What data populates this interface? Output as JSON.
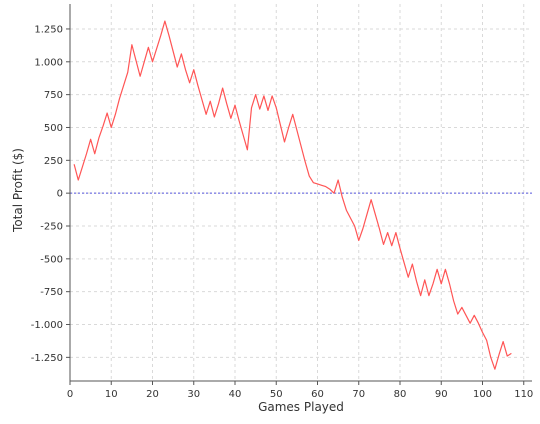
{
  "chart_data": {
    "type": "line",
    "title": "",
    "xlabel": "Games Played",
    "ylabel": "Total Profit ($)",
    "xlim": [
      0,
      112
    ],
    "ylim": [
      -1430,
      1440
    ],
    "x_ticks": [
      0,
      10,
      20,
      30,
      40,
      50,
      60,
      70,
      80,
      90,
      100,
      110
    ],
    "x_tick_labels": [
      "0",
      "10",
      "20",
      "30",
      "40",
      "50",
      "60",
      "70",
      "80",
      "90",
      "100",
      "110"
    ],
    "y_ticks": [
      1250,
      1000,
      750,
      500,
      250,
      0,
      -250,
      -500,
      -750,
      -1000,
      -1250
    ],
    "y_tick_labels": [
      "1.250",
      "1.000",
      "750",
      "500",
      "250",
      "0",
      "-250",
      "-500",
      "-750",
      "-1.000",
      "-1.250"
    ],
    "grid": true,
    "reference_line": {
      "y": 0,
      "color": "#5555dd"
    },
    "series": [
      {
        "color": "#ff5555",
        "x": [
          1,
          2,
          3,
          4,
          5,
          6,
          7,
          8,
          9,
          10,
          11,
          12,
          13,
          14,
          15,
          16,
          17,
          18,
          19,
          20,
          21,
          22,
          23,
          24,
          25,
          26,
          27,
          28,
          29,
          30,
          31,
          32,
          33,
          34,
          35,
          36,
          37,
          38,
          39,
          40,
          41,
          42,
          43,
          44,
          45,
          46,
          47,
          48,
          49,
          50,
          51,
          52,
          53,
          54,
          55,
          56,
          57,
          58,
          59,
          60,
          61,
          62,
          63,
          64,
          65,
          66,
          67,
          68,
          69,
          70,
          71,
          72,
          73,
          74,
          75,
          76,
          77,
          78,
          79,
          80,
          81,
          82,
          83,
          84,
          85,
          86,
          87,
          88,
          89,
          90,
          91,
          92,
          93,
          94,
          95,
          96,
          97,
          98,
          99,
          100,
          101,
          102,
          103,
          104,
          105,
          106,
          107
        ],
        "values": [
          220,
          100,
          200,
          300,
          410,
          300,
          420,
          510,
          610,
          500,
          600,
          720,
          820,
          920,
          1130,
          1010,
          890,
          1000,
          1110,
          1000,
          1100,
          1200,
          1310,
          1200,
          1080,
          960,
          1060,
          940,
          840,
          940,
          820,
          710,
          600,
          700,
          580,
          680,
          800,
          680,
          570,
          670,
          550,
          440,
          330,
          650,
          750,
          640,
          740,
          630,
          740,
          650,
          520,
          390,
          500,
          600,
          480,
          360,
          240,
          130,
          80,
          70,
          60,
          50,
          30,
          0,
          100,
          -30,
          -130,
          -190,
          -250,
          -360,
          -270,
          -160,
          -50,
          -160,
          -270,
          -390,
          -300,
          -400,
          -300,
          -420,
          -530,
          -640,
          -540,
          -670,
          -780,
          -660,
          -780,
          -690,
          -580,
          -690,
          -580,
          -690,
          -820,
          -920,
          -870,
          -930,
          -990,
          -930,
          -990,
          -1060,
          -1120,
          -1250,
          -1340,
          -1230,
          -1130,
          -1240,
          -1220
        ]
      }
    ]
  },
  "style": {
    "axis_color": "#555555",
    "grid_color": "#d9d9d9",
    "text_color": "#333333",
    "background": "#ffffff"
  }
}
